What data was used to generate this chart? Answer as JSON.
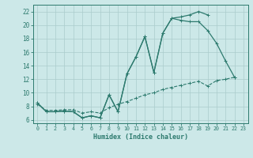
{
  "xlabel": "Humidex (Indice chaleur)",
  "background_color": "#cce8e8",
  "grid_color": "#aacccc",
  "line_color": "#2d7a6e",
  "xlim": [
    -0.5,
    23.5
  ],
  "ylim": [
    5.5,
    23.0
  ],
  "xticks": [
    0,
    1,
    2,
    3,
    4,
    5,
    6,
    7,
    8,
    9,
    10,
    11,
    12,
    13,
    14,
    15,
    16,
    17,
    18,
    19,
    20,
    21,
    22,
    23
  ],
  "yticks": [
    6,
    8,
    10,
    12,
    14,
    16,
    18,
    20,
    22
  ],
  "line1_x": [
    0,
    1,
    2,
    3,
    4,
    5,
    6,
    7,
    8,
    9,
    10,
    11,
    12,
    13,
    14,
    15,
    16,
    17,
    18,
    19,
    20,
    21,
    22
  ],
  "line1_y": [
    8.5,
    7.2,
    7.2,
    7.3,
    7.2,
    6.3,
    6.6,
    6.3,
    9.7,
    7.2,
    12.8,
    15.3,
    18.3,
    13.0,
    18.8,
    21.0,
    20.7,
    20.5,
    20.5,
    19.2,
    17.3,
    14.7,
    12.3
  ],
  "line2_x": [
    0,
    1,
    2,
    3,
    4,
    5,
    6,
    7,
    8,
    9,
    10,
    11,
    12,
    13,
    14,
    15,
    16,
    17,
    18,
    19
  ],
  "line2_y": [
    8.5,
    7.2,
    7.2,
    7.3,
    7.2,
    6.3,
    6.6,
    6.3,
    9.7,
    7.2,
    12.8,
    15.3,
    18.3,
    13.0,
    18.8,
    21.0,
    21.2,
    21.5,
    22.0,
    21.5
  ],
  "line3_x": [
    0,
    1,
    2,
    3,
    4,
    5,
    6,
    7,
    8,
    9,
    10,
    11,
    12,
    13,
    14,
    15,
    16,
    17,
    18,
    19,
    20,
    21,
    22
  ],
  "line3_y": [
    8.3,
    7.4,
    7.4,
    7.5,
    7.5,
    7.0,
    7.2,
    7.0,
    7.8,
    8.3,
    8.7,
    9.2,
    9.7,
    10.0,
    10.5,
    10.8,
    11.1,
    11.4,
    11.7,
    11.0,
    11.8,
    12.0,
    12.3
  ]
}
